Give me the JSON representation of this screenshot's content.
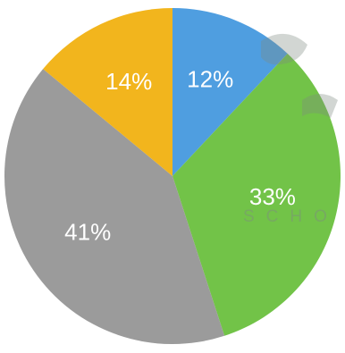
{
  "chart_data": {
    "type": "pie",
    "title": "",
    "start_angle_deg": 0,
    "direction": "clockwise",
    "legend": "none",
    "slices": [
      {
        "label": "12%",
        "value": 12,
        "color": "#4f9ee0"
      },
      {
        "label": "33%",
        "value": 33,
        "color": "#72c348"
      },
      {
        "label": "41%",
        "value": 41,
        "color": "#9b9b9b"
      },
      {
        "label": "14%",
        "value": 14,
        "color": "#f2b51d"
      }
    ]
  },
  "watermark": {
    "text": "SCHO"
  }
}
